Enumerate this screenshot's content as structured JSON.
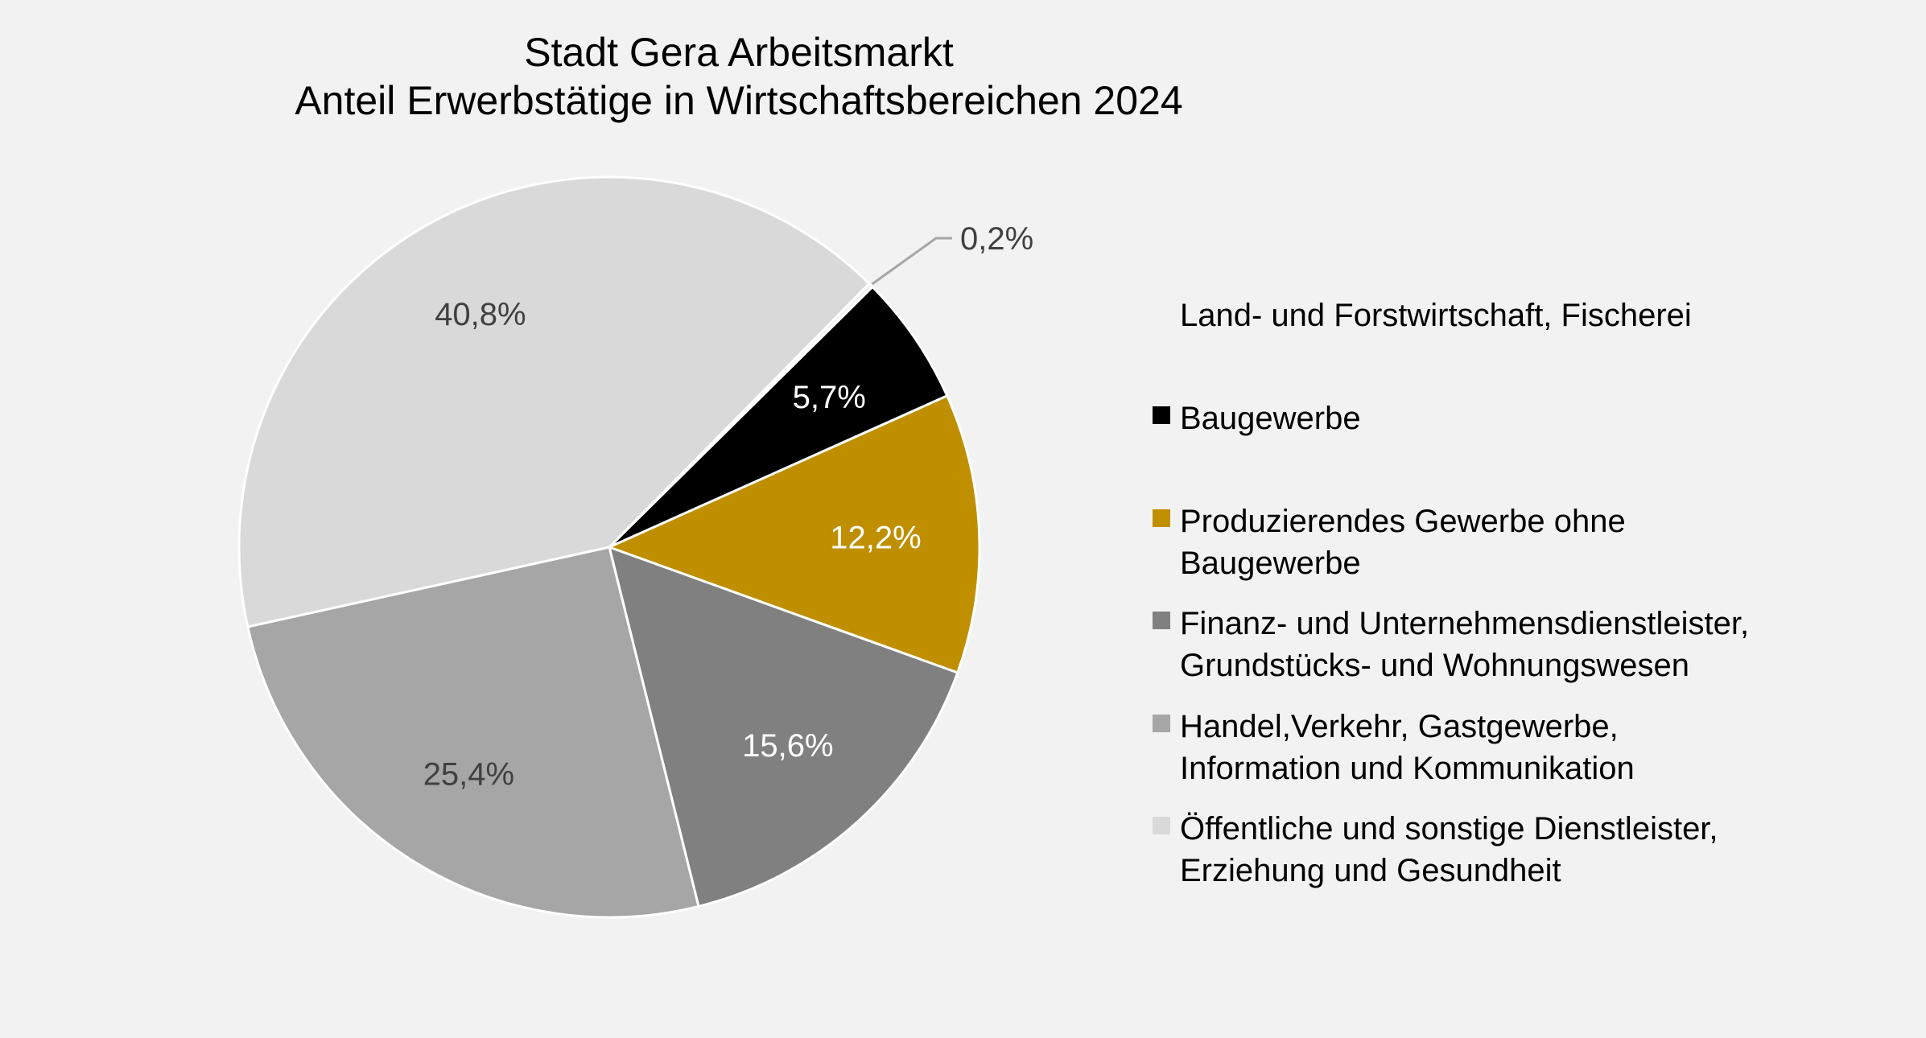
{
  "chart_data": {
    "type": "pie",
    "title": "Stadt Gera Arbeitsmarkt",
    "subtitle": "Anteil Erwerbstätige in Wirtschaftsbereichen 2024",
    "legend_position": "right",
    "slices": [
      {
        "name_lines": [
          "Land- und Forstwirtschaft, Fischerei"
        ],
        "value": 0.2,
        "label": "0,2%",
        "color": "#f2f2f2",
        "label_color": "#404040"
      },
      {
        "name_lines": [
          "Baugewerbe"
        ],
        "value": 5.7,
        "label": "5,7%",
        "color": "#000000",
        "label_color": "#ffffff"
      },
      {
        "name_lines": [
          "Produzierendes Gewerbe ohne",
          "Baugewerbe"
        ],
        "value": 12.2,
        "label": "12,2%",
        "color": "#bf8f00",
        "label_color": "#ffffff"
      },
      {
        "name_lines": [
          "Finanz- und Unternehmensdienstleister,",
          "Grundstücks- und Wohnungswesen"
        ],
        "value": 15.6,
        "label": "15,6%",
        "color": "#808080",
        "label_color": "#ffffff"
      },
      {
        "name_lines": [
          "Handel,Verkehr, Gastgewerbe,",
          "Information und Kommunikation"
        ],
        "value": 25.4,
        "label": "25,4%",
        "color": "#a6a6a6",
        "label_color": "#404040"
      },
      {
        "name_lines": [
          "Öffentliche und sonstige Dienstleister,",
          "Erziehung und Gesundheit"
        ],
        "value": 40.8,
        "label": "40,8%",
        "color": "#d9d9d9",
        "label_color": "#404040"
      }
    ]
  }
}
